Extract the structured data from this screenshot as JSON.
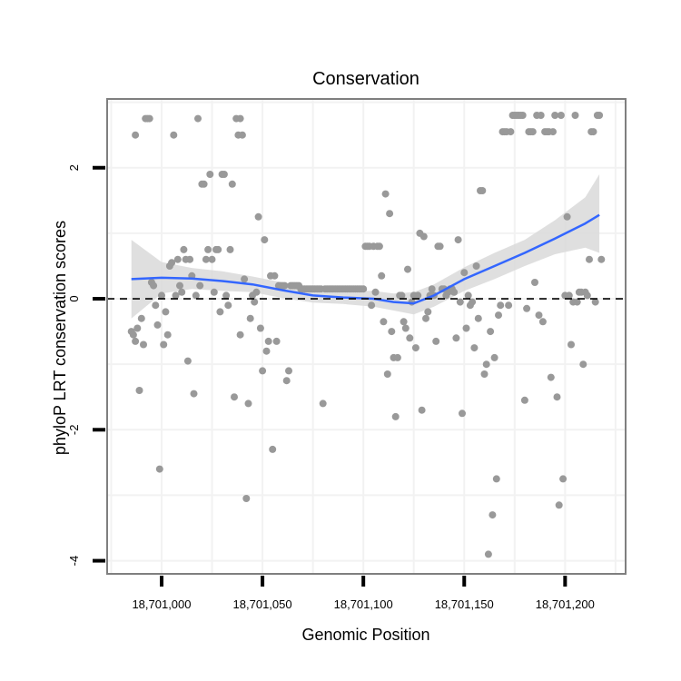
{
  "chart_data": {
    "type": "scatter",
    "title": "Conservation",
    "xlabel": "Genomic Position",
    "ylabel": "phyloP LRT conservation scores",
    "xlim": [
      18700973,
      18701230
    ],
    "ylim": [
      -4.2,
      3.05
    ],
    "x_ticks": [
      18701000,
      18701050,
      18701100,
      18701150,
      18701200
    ],
    "x_tick_labels": [
      "18,701,000",
      "18,701,050",
      "18,701,100",
      "18,701,150",
      "18,701,200"
    ],
    "y_ticks": [
      -4,
      -2,
      0,
      2
    ],
    "y_tick_labels": [
      "-4",
      "-2",
      "0",
      "2"
    ],
    "grid": true,
    "reference_line": {
      "y": 0,
      "style": "dashed",
      "color": "#000000"
    },
    "colors": {
      "points": "#999999",
      "smooth": "#3366ff",
      "ribbon": "#d9d9d9",
      "panel_border": "#7f7f7f",
      "grid": "#f2f2f2"
    },
    "points": [
      [
        18700985,
        -0.5
      ],
      [
        18700986,
        -0.55
      ],
      [
        18700987,
        -0.65
      ],
      [
        18700987,
        2.5
      ],
      [
        18700988,
        -0.45
      ],
      [
        18700989,
        -1.4
      ],
      [
        18700990,
        -0.3
      ],
      [
        18700991,
        -0.7
      ],
      [
        18700992,
        2.75
      ],
      [
        18700993,
        2.75
      ],
      [
        18700994,
        2.75
      ],
      [
        18700995,
        0.25
      ],
      [
        18700996,
        0.2
      ],
      [
        18700997,
        -0.1
      ],
      [
        18700998,
        -0.4
      ],
      [
        18700999,
        -2.6
      ],
      [
        18701000,
        0.05
      ],
      [
        18701001,
        -0.7
      ],
      [
        18701002,
        -0.2
      ],
      [
        18701003,
        -0.55
      ],
      [
        18701004,
        0.5
      ],
      [
        18701005,
        0.55
      ],
      [
        18701006,
        2.5
      ],
      [
        18701007,
        0.05
      ],
      [
        18701008,
        0.6
      ],
      [
        18701009,
        0.2
      ],
      [
        18701010,
        0.1
      ],
      [
        18701011,
        0.75
      ],
      [
        18701012,
        0.6
      ],
      [
        18701013,
        -0.95
      ],
      [
        18701014,
        0.6
      ],
      [
        18701015,
        0.35
      ],
      [
        18701016,
        -1.45
      ],
      [
        18701017,
        0.05
      ],
      [
        18701018,
        2.75
      ],
      [
        18701019,
        0.2
      ],
      [
        18701020,
        1.75
      ],
      [
        18701021,
        1.75
      ],
      [
        18701022,
        0.6
      ],
      [
        18701023,
        0.75
      ],
      [
        18701024,
        1.9
      ],
      [
        18701025,
        0.6
      ],
      [
        18701026,
        0.1
      ],
      [
        18701027,
        0.75
      ],
      [
        18701028,
        0.75
      ],
      [
        18701029,
        -0.2
      ],
      [
        18701030,
        1.9
      ],
      [
        18701031,
        1.9
      ],
      [
        18701032,
        0.05
      ],
      [
        18701033,
        -0.1
      ],
      [
        18701034,
        0.75
      ],
      [
        18701035,
        1.75
      ],
      [
        18701036,
        -1.5
      ],
      [
        18701037,
        2.75
      ],
      [
        18701038,
        2.5
      ],
      [
        18701039,
        2.75
      ],
      [
        18701039,
        -0.55
      ],
      [
        18701040,
        2.5
      ],
      [
        18701041,
        0.3
      ],
      [
        18701042,
        -3.05
      ],
      [
        18701043,
        -1.6
      ],
      [
        18701044,
        -0.3
      ],
      [
        18701045,
        0.05
      ],
      [
        18701046,
        -0.05
      ],
      [
        18701047,
        0.1
      ],
      [
        18701048,
        1.25
      ],
      [
        18701049,
        -0.45
      ],
      [
        18701050,
        -1.1
      ],
      [
        18701051,
        0.9
      ],
      [
        18701052,
        -0.8
      ],
      [
        18701053,
        -0.65
      ],
      [
        18701054,
        0.35
      ],
      [
        18701055,
        -2.3
      ],
      [
        18701056,
        0.35
      ],
      [
        18701057,
        -0.65
      ],
      [
        18701058,
        0.2
      ],
      [
        18701059,
        0.2
      ],
      [
        18701060,
        0.2
      ],
      [
        18701061,
        0.2
      ],
      [
        18701062,
        -1.25
      ],
      [
        18701063,
        -1.1
      ],
      [
        18701064,
        0.2
      ],
      [
        18701065,
        0.2
      ],
      [
        18701066,
        0.2
      ],
      [
        18701067,
        0.2
      ],
      [
        18701068,
        0.2
      ],
      [
        18701069,
        0.15
      ],
      [
        18701070,
        0.15
      ],
      [
        18701071,
        0.15
      ],
      [
        18701072,
        0.15
      ],
      [
        18701073,
        0.15
      ],
      [
        18701074,
        0.15
      ],
      [
        18701075,
        0.15
      ],
      [
        18701076,
        0.15
      ],
      [
        18701077,
        0.15
      ],
      [
        18701078,
        0.15
      ],
      [
        18701079,
        0.15
      ],
      [
        18701080,
        -1.6
      ],
      [
        18701081,
        0.15
      ],
      [
        18701082,
        0.15
      ],
      [
        18701083,
        0.15
      ],
      [
        18701084,
        0.15
      ],
      [
        18701085,
        0.15
      ],
      [
        18701086,
        0.15
      ],
      [
        18701087,
        0.15
      ],
      [
        18701088,
        0.15
      ],
      [
        18701089,
        0.15
      ],
      [
        18701090,
        0.15
      ],
      [
        18701091,
        0.15
      ],
      [
        18701092,
        0.15
      ],
      [
        18701093,
        0.15
      ],
      [
        18701094,
        0.15
      ],
      [
        18701095,
        0.15
      ],
      [
        18701096,
        0.15
      ],
      [
        18701097,
        0.15
      ],
      [
        18701098,
        0.15
      ],
      [
        18701099,
        0.15
      ],
      [
        18701100,
        0.15
      ],
      [
        18701101,
        0.8
      ],
      [
        18701102,
        0.8
      ],
      [
        18701103,
        0.8
      ],
      [
        18701104,
        -0.1
      ],
      [
        18701105,
        0.8
      ],
      [
        18701106,
        0.1
      ],
      [
        18701107,
        0.8
      ],
      [
        18701108,
        0.8
      ],
      [
        18701109,
        0.35
      ],
      [
        18701110,
        -0.35
      ],
      [
        18701111,
        1.6
      ],
      [
        18701112,
        -1.15
      ],
      [
        18701113,
        1.3
      ],
      [
        18701114,
        -0.5
      ],
      [
        18701115,
        -0.9
      ],
      [
        18701116,
        -1.8
      ],
      [
        18701117,
        -0.9
      ],
      [
        18701118,
        0.05
      ],
      [
        18701119,
        0.05
      ],
      [
        18701120,
        -0.35
      ],
      [
        18701121,
        -0.45
      ],
      [
        18701122,
        0.45
      ],
      [
        18701123,
        -0.6
      ],
      [
        18701124,
        -0.05
      ],
      [
        18701125,
        0.05
      ],
      [
        18701126,
        -0.75
      ],
      [
        18701127,
        0.05
      ],
      [
        18701128,
        1.0
      ],
      [
        18701129,
        -1.7
      ],
      [
        18701130,
        0.95
      ],
      [
        18701131,
        -0.3
      ],
      [
        18701132,
        -0.2
      ],
      [
        18701133,
        0.05
      ],
      [
        18701134,
        0.15
      ],
      [
        18701135,
        0.05
      ],
      [
        18701136,
        -0.65
      ],
      [
        18701137,
        0.8
      ],
      [
        18701138,
        0.8
      ],
      [
        18701139,
        0.15
      ],
      [
        18701140,
        0.15
      ],
      [
        18701141,
        0.05
      ],
      [
        18701142,
        0.1
      ],
      [
        18701143,
        0.15
      ],
      [
        18701144,
        0.15
      ],
      [
        18701145,
        0.1
      ],
      [
        18701146,
        -0.6
      ],
      [
        18701147,
        0.9
      ],
      [
        18701148,
        -0.05
      ],
      [
        18701149,
        -1.75
      ],
      [
        18701150,
        0.4
      ],
      [
        18701151,
        -0.45
      ],
      [
        18701152,
        0.05
      ],
      [
        18701153,
        -0.1
      ],
      [
        18701154,
        -0.05
      ],
      [
        18701155,
        -0.75
      ],
      [
        18701156,
        0.5
      ],
      [
        18701157,
        -0.3
      ],
      [
        18701158,
        1.65
      ],
      [
        18701159,
        1.65
      ],
      [
        18701160,
        -1.15
      ],
      [
        18701161,
        -1.0
      ],
      [
        18701162,
        -3.9
      ],
      [
        18701163,
        -0.5
      ],
      [
        18701164,
        -3.3
      ],
      [
        18701165,
        -0.9
      ],
      [
        18701166,
        -2.75
      ],
      [
        18701167,
        -0.25
      ],
      [
        18701168,
        -0.1
      ],
      [
        18701169,
        2.55
      ],
      [
        18701170,
        2.55
      ],
      [
        18701171,
        2.55
      ],
      [
        18701172,
        -0.1
      ],
      [
        18701173,
        2.55
      ],
      [
        18701174,
        2.8
      ],
      [
        18701175,
        2.8
      ],
      [
        18701176,
        2.8
      ],
      [
        18701177,
        2.8
      ],
      [
        18701178,
        2.8
      ],
      [
        18701179,
        2.8
      ],
      [
        18701180,
        -1.55
      ],
      [
        18701181,
        -0.15
      ],
      [
        18701182,
        2.55
      ],
      [
        18701183,
        2.55
      ],
      [
        18701184,
        2.55
      ],
      [
        18701185,
        0.25
      ],
      [
        18701186,
        2.8
      ],
      [
        18701187,
        -0.25
      ],
      [
        18701188,
        2.8
      ],
      [
        18701189,
        -0.35
      ],
      [
        18701190,
        2.55
      ],
      [
        18701191,
        2.55
      ],
      [
        18701192,
        2.55
      ],
      [
        18701193,
        -1.2
      ],
      [
        18701194,
        2.55
      ],
      [
        18701195,
        2.8
      ],
      [
        18701196,
        -1.5
      ],
      [
        18701197,
        -3.15
      ],
      [
        18701198,
        2.8
      ],
      [
        18701199,
        -2.75
      ],
      [
        18701200,
        0.05
      ],
      [
        18701201,
        1.25
      ],
      [
        18701202,
        0.05
      ],
      [
        18701203,
        -0.7
      ],
      [
        18701204,
        -0.05
      ],
      [
        18701205,
        2.8
      ],
      [
        18701206,
        -0.05
      ],
      [
        18701207,
        0.1
      ],
      [
        18701208,
        0.1
      ],
      [
        18701209,
        -1.0
      ],
      [
        18701210,
        0.1
      ],
      [
        18701211,
        0.05
      ],
      [
        18701212,
        0.6
      ],
      [
        18701213,
        2.55
      ],
      [
        18701214,
        2.55
      ],
      [
        18701215,
        -0.05
      ],
      [
        18701216,
        2.8
      ],
      [
        18701217,
        2.8
      ],
      [
        18701218,
        0.6
      ]
    ],
    "smooth": {
      "x": [
        18700985,
        18701000,
        18701015,
        18701030,
        18701045,
        18701060,
        18701075,
        18701090,
        18701105,
        18701115,
        18701125,
        18701135,
        18701150,
        18701165,
        18701180,
        18701195,
        18701210,
        18701217
      ],
      "fit": [
        0.3,
        0.32,
        0.31,
        0.27,
        0.22,
        0.13,
        0.05,
        0.02,
        0.0,
        -0.05,
        -0.07,
        0.05,
        0.3,
        0.5,
        0.7,
        0.92,
        1.15,
        1.28
      ],
      "lower": [
        -0.3,
        0.08,
        0.15,
        0.12,
        0.1,
        0.01,
        -0.06,
        -0.08,
        -0.12,
        -0.18,
        -0.24,
        -0.12,
        0.12,
        0.3,
        0.5,
        0.68,
        0.78,
        0.7
      ],
      "upper": [
        0.9,
        0.56,
        0.47,
        0.42,
        0.34,
        0.25,
        0.16,
        0.12,
        0.12,
        0.08,
        0.1,
        0.22,
        0.48,
        0.7,
        0.9,
        1.2,
        1.55,
        1.9
      ]
    }
  }
}
